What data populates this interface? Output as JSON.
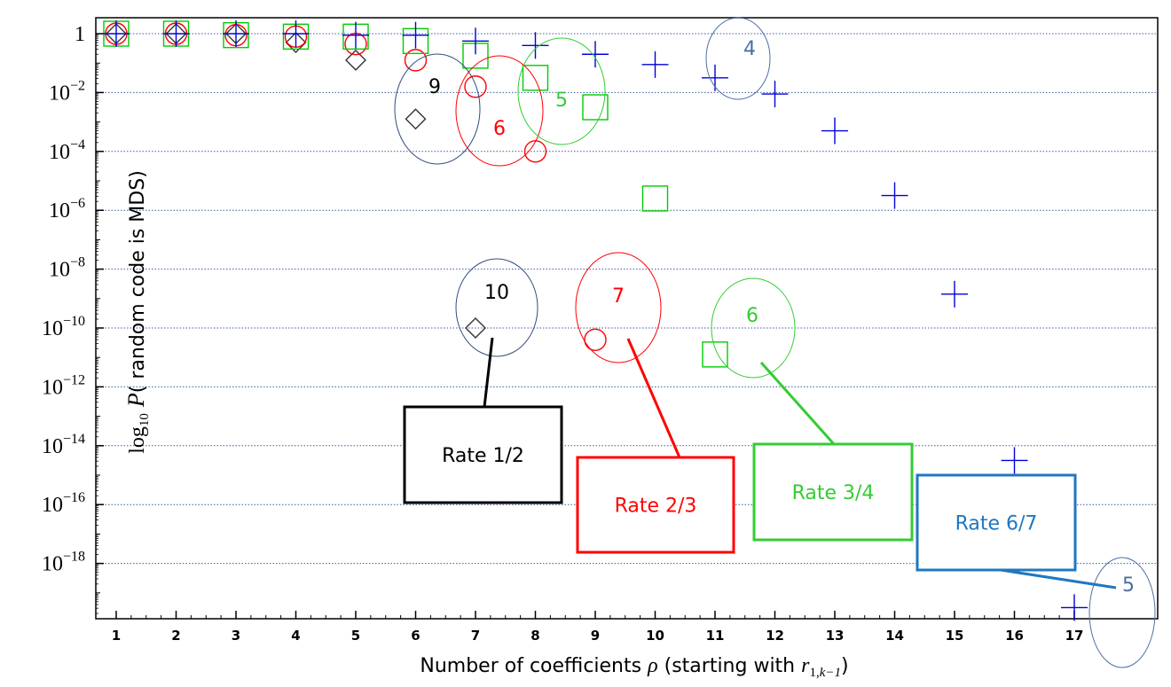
{
  "chart_data": {
    "type": "scatter",
    "x": [
      1,
      2,
      3,
      4,
      5,
      6,
      7,
      8,
      9,
      10,
      11,
      12,
      13,
      14,
      15,
      16,
      17
    ],
    "xlabel_parts": [
      "Number of coefficients ",
      "ρ",
      " (starting with  ",
      "r",
      "1,",
      "k−1",
      ")"
    ],
    "ylabel_parts": [
      "log",
      "10",
      " ",
      "P",
      "( random code is MDS)"
    ],
    "yscale": "log10",
    "ylim_exponent": [
      -20,
      0
    ],
    "x_ticks": [
      "1",
      "2",
      "3",
      "4",
      "5",
      "6",
      "7",
      "8",
      "9",
      "10",
      "11",
      "12",
      "13",
      "14",
      "15",
      "16",
      "17"
    ],
    "y_ticks": [
      {
        "base": "1",
        "exp": ""
      },
      {
        "base": "10",
        "exp": "−2"
      },
      {
        "base": "10",
        "exp": "−4"
      },
      {
        "base": "10",
        "exp": "−6"
      },
      {
        "base": "10",
        "exp": "−8"
      },
      {
        "base": "10",
        "exp": "−10"
      },
      {
        "base": "10",
        "exp": "−12"
      },
      {
        "base": "10",
        "exp": "−14"
      },
      {
        "base": "10",
        "exp": "−16"
      },
      {
        "base": "10",
        "exp": "−18"
      }
    ],
    "grid": "horizontal dotted",
    "series": [
      {
        "name": "Rate 1/2",
        "marker": "diamond",
        "color": "#333333",
        "points": [
          [
            1,
            0
          ],
          [
            2,
            0
          ],
          [
            3,
            0
          ],
          [
            4,
            -0.3
          ],
          [
            5,
            -0.9
          ],
          [
            6,
            -2.9
          ],
          [
            7,
            -10
          ]
        ]
      },
      {
        "name": "Rate 2/3",
        "marker": "circle",
        "color": "#ff0000",
        "points": [
          [
            1,
            0
          ],
          [
            2,
            0
          ],
          [
            3,
            -0.05
          ],
          [
            4,
            -0.1
          ],
          [
            5,
            -0.35
          ],
          [
            6,
            -0.9
          ],
          [
            7,
            -1.8
          ],
          [
            8,
            -4
          ],
          [
            9,
            -10.4
          ]
        ]
      },
      {
        "name": "Rate 3/4",
        "marker": "square",
        "color": "#00cc00",
        "points": [
          [
            1,
            0
          ],
          [
            2,
            0
          ],
          [
            3,
            -0.05
          ],
          [
            4,
            -0.1
          ],
          [
            5,
            -0.1
          ],
          [
            6,
            -0.25
          ],
          [
            7,
            -0.75
          ],
          [
            8,
            -1.5
          ],
          [
            9,
            -2.5
          ],
          [
            10,
            -5.6
          ],
          [
            11,
            -10.9
          ]
        ]
      },
      {
        "name": "Rate 6/7",
        "marker": "plus",
        "color": "#0000dd",
        "points": [
          [
            1,
            0
          ],
          [
            2,
            0
          ],
          [
            3,
            0
          ],
          [
            4,
            0
          ],
          [
            5,
            -0.05
          ],
          [
            6,
            -0.05
          ],
          [
            7,
            -0.25
          ],
          [
            8,
            -0.4
          ],
          [
            9,
            -0.7
          ],
          [
            10,
            -1.05
          ],
          [
            11,
            -1.5
          ],
          [
            12,
            -2.05
          ],
          [
            13,
            -3.3
          ],
          [
            14,
            -5.5
          ],
          [
            15,
            -8.85
          ],
          [
            16,
            -14.5
          ],
          [
            17,
            -19.5
          ]
        ]
      }
    ],
    "annotations": [
      {
        "text": "9",
        "x": 6,
        "y": -2.1,
        "color": "#000000",
        "ring": "#2f4f7f"
      },
      {
        "text": "10",
        "x": 7,
        "y": -9,
        "color": "#000000",
        "ring": "#2f4f7f"
      },
      {
        "text": "6",
        "x": 7,
        "y": -3.2,
        "color": "#ff0000",
        "ring": "#ff0000"
      },
      {
        "text": "7",
        "x": 9,
        "y": -9,
        "color": "#ff0000",
        "ring": "#ff0000"
      },
      {
        "text": "5",
        "x": 8,
        "y": -2.5,
        "color": "#33cc33",
        "ring": "#33cc33"
      },
      {
        "text": "6",
        "x": 11,
        "y": -9.7,
        "color": "#33cc33",
        "ring": "#33cc33"
      },
      {
        "text": "4",
        "x": 11,
        "y": -0.5,
        "color": "#4a6fa5",
        "ring": "#4a6fa5"
      },
      {
        "text": "5",
        "x": 17,
        "y": -18.8,
        "color": "#4a6fa5",
        "ring": "#4a6fa5"
      }
    ],
    "legend_boxes": [
      {
        "label": "Rate 1/2",
        "color": "#000000",
        "text_color": "#000000"
      },
      {
        "label": "Rate 2/3",
        "color": "#ff0000",
        "text_color": "#ff0000"
      },
      {
        "label": "Rate 3/4",
        "color": "#33cc33",
        "text_color": "#33cc33"
      },
      {
        "label": "Rate 6/7",
        "color": "#1f77c0",
        "text_color": "#1f77c0"
      }
    ]
  }
}
